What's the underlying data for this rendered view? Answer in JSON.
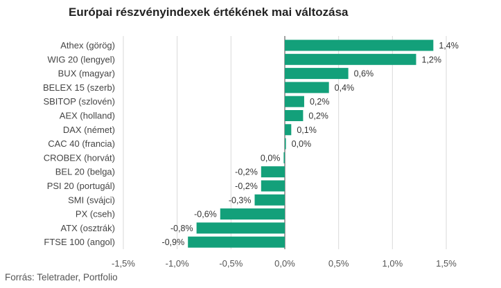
{
  "chart_data": {
    "type": "bar",
    "orientation": "horizontal",
    "title": "Európai részvényindexek értékének mai változása",
    "categories": [
      "Athex (görög)",
      "WIG 20 (lengyel)",
      "BUX (magyar)",
      "BELEX 15 (szerb)",
      "SBITOP (szlovén)",
      "AEX (holland)",
      "DAX (német)",
      "CAC 40 (francia)",
      "CROBEX (horvát)",
      "BEL 20 (belga)",
      "PSI 20 (portugál)",
      "SMI (svájci)",
      "PX (cseh)",
      "ATX (osztrák)",
      "FTSE 100 (angol)"
    ],
    "values": [
      1.38,
      1.22,
      0.59,
      0.41,
      0.18,
      0.17,
      0.06,
      0.01,
      -0.01,
      -0.22,
      -0.22,
      -0.28,
      -0.6,
      -0.82,
      -0.9
    ],
    "value_labels": [
      "1,4%",
      "1,2%",
      "0,6%",
      "0,4%",
      "0,2%",
      "0,2%",
      "0,1%",
      "0,0%",
      "0,0%",
      "-0,2%",
      "-0,2%",
      "-0,3%",
      "-0,6%",
      "-0,8%",
      "-0,9%"
    ],
    "xlim": [
      -1.5,
      1.5
    ],
    "xticks": [
      -1.5,
      -1.0,
      -0.5,
      0.0,
      0.5,
      1.0,
      1.5
    ],
    "xtick_labels": [
      "-1,5%",
      "-1,0%",
      "-0,5%",
      "0,0%",
      "0,5%",
      "1,0%",
      "1,5%"
    ],
    "xlabel": "",
    "ylabel": "",
    "grid": "vertical",
    "bar_color": "#13a07a",
    "grid_color": "#d9d9d9",
    "zero_line_color": "#444444"
  },
  "source": "Forrás: Teletrader, Portfolio"
}
